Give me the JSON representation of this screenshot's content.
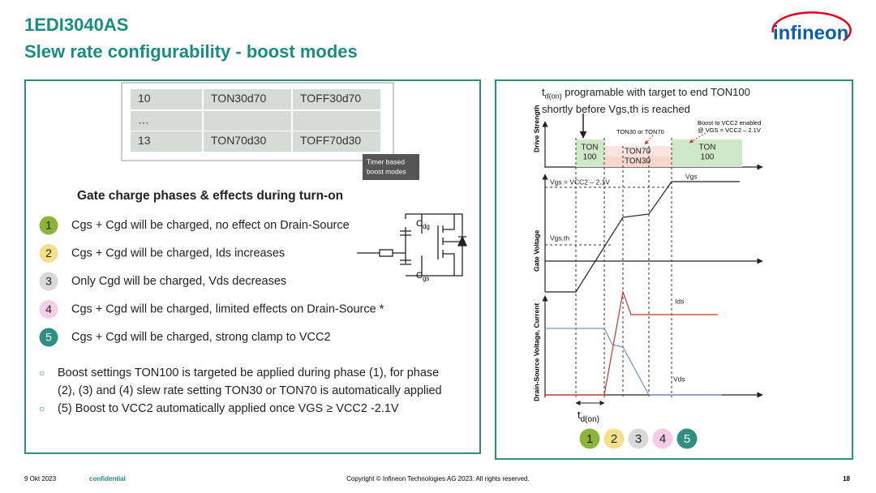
{
  "header": {
    "title": "1EDI3040AS",
    "subtitle": "Slew rate configurability - boost modes",
    "logo": "infineon"
  },
  "left_panel": {
    "table": {
      "rows": [
        [
          "10",
          "TON30d70",
          "TOFF30d70"
        ],
        [
          "…"
        ],
        [
          "13",
          "TON70d30",
          "TOFF70d30"
        ]
      ]
    },
    "callout": [
      "Timer based",
      "boost modes"
    ],
    "heading": "Gate charge phases & effects during turn-on",
    "phases": [
      {
        "number": "1",
        "text": "Cgs + Cgd will be charged, no effect on Drain-Source",
        "color": "#8db33b"
      },
      {
        "number": "2",
        "text": "Cgs + Cgd will be charged, Ids increases",
        "color": "#f5e08a"
      },
      {
        "number": "3",
        "text": "Only Cgd will be charged, Vds decreases",
        "color": "#d9d9d9"
      },
      {
        "number": "4",
        "text": "Cgs + Cgd will be charged, limited effects on Drain-Source *",
        "color": "#f5cde6"
      },
      {
        "number": "5",
        "text": "Cgs + Cgd will be charged, strong clamp to VCC2",
        "color": "#2f8f80"
      }
    ],
    "circuit": {
      "cdg": {
        "main": "C",
        "sub": "dg"
      },
      "cgs": {
        "main": "C",
        "sub": "gs"
      }
    },
    "bullets": [
      "Boost settings TON100 is targeted be applied during phase (1), for phase (2), (3) and (4) slew rate setting TON30 or TON70 is automatically applied",
      "(5) Boost to VCC2 automatically applied once VGS ≥ VCC2 -2.1V"
    ]
  },
  "right_panel": {
    "note": {
      "t": "t",
      "sub": "d(on)",
      "line1": " programable with target to end TON100",
      "line2": "shortly before Vgs,th is reached"
    },
    "axis_labels": {
      "drive": "Drive Strength",
      "gate": "Gate Voltage",
      "drain": "Drain-Source Voltage, Current"
    },
    "boxes": {
      "ton100_a": [
        "TON",
        "100"
      ],
      "ton70": "TON70",
      "ton30": "TON30",
      "ton100_b": [
        "TON",
        "100"
      ]
    },
    "annotations": {
      "ton_choice": "TON30 or TON70",
      "boost": [
        "Boost to VCC2 enabled",
        "@ VGS = VCC2 – 2.1V"
      ]
    },
    "labels": {
      "vgs_vcc2": "Vgs = VCC2 – 2.1V",
      "vgs": "Vgs",
      "vgs_th": "Vgs,th",
      "ids": "Ids",
      "vds": "Vds",
      "td_t": "t",
      "td_sub": "d(on)"
    }
  },
  "footer": {
    "date": "9 Okt 2023",
    "confidential": "confidential",
    "copyright": "Copyright © Infineon Technologies AG 2023. All rights reserved.",
    "page": "18"
  }
}
